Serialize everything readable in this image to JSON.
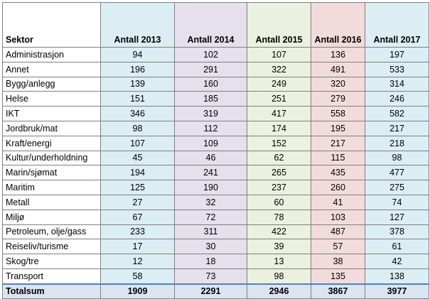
{
  "chart_data": {
    "type": "table",
    "columns": [
      "Sektor",
      "Antall 2013",
      "Antall 2014",
      "Antall 2015",
      "Antall 2016",
      "Antall 2017"
    ],
    "rows": [
      {
        "sektor": "Administrasjon",
        "values": [
          94,
          102,
          107,
          136,
          197
        ]
      },
      {
        "sektor": "Annet",
        "values": [
          196,
          291,
          322,
          491,
          533
        ]
      },
      {
        "sektor": "Bygg/anlegg",
        "values": [
          139,
          160,
          249,
          320,
          314
        ]
      },
      {
        "sektor": "Helse",
        "values": [
          151,
          185,
          251,
          279,
          246
        ]
      },
      {
        "sektor": "IKT",
        "values": [
          346,
          319,
          417,
          558,
          582
        ]
      },
      {
        "sektor": "Jordbruk/mat",
        "values": [
          98,
          112,
          174,
          195,
          217
        ]
      },
      {
        "sektor": "Kraft/energi",
        "values": [
          107,
          109,
          152,
          217,
          218
        ]
      },
      {
        "sektor": "Kultur/underholdning",
        "values": [
          45,
          46,
          62,
          115,
          98
        ]
      },
      {
        "sektor": "Marin/sjømat",
        "values": [
          194,
          241,
          265,
          435,
          477
        ]
      },
      {
        "sektor": "Maritim",
        "values": [
          125,
          190,
          237,
          260,
          275
        ]
      },
      {
        "sektor": "Metall",
        "values": [
          27,
          32,
          60,
          41,
          74
        ]
      },
      {
        "sektor": "Miljø",
        "values": [
          67,
          72,
          78,
          103,
          127
        ]
      },
      {
        "sektor": "Petroleum, olje/gass",
        "values": [
          233,
          311,
          422,
          487,
          378
        ]
      },
      {
        "sektor": "Reiseliv/turisme",
        "values": [
          17,
          30,
          39,
          57,
          61
        ]
      },
      {
        "sektor": "Skog/tre",
        "values": [
          12,
          18,
          13,
          38,
          42
        ]
      },
      {
        "sektor": "Transport",
        "values": [
          58,
          73,
          98,
          135,
          138
        ]
      }
    ],
    "total": {
      "label": "Totalsum",
      "values": [
        1909,
        2291,
        2946,
        3867,
        3977
      ]
    }
  },
  "colors": {
    "col_2013": "#dbeef4",
    "col_2014": "#e5e0ec",
    "col_2015": "#ebf1de",
    "col_2016": "#f2dcdb",
    "col_2017": "#dbeef4",
    "total_row": "#dbe5f1",
    "grid": "#7f7f7f"
  }
}
